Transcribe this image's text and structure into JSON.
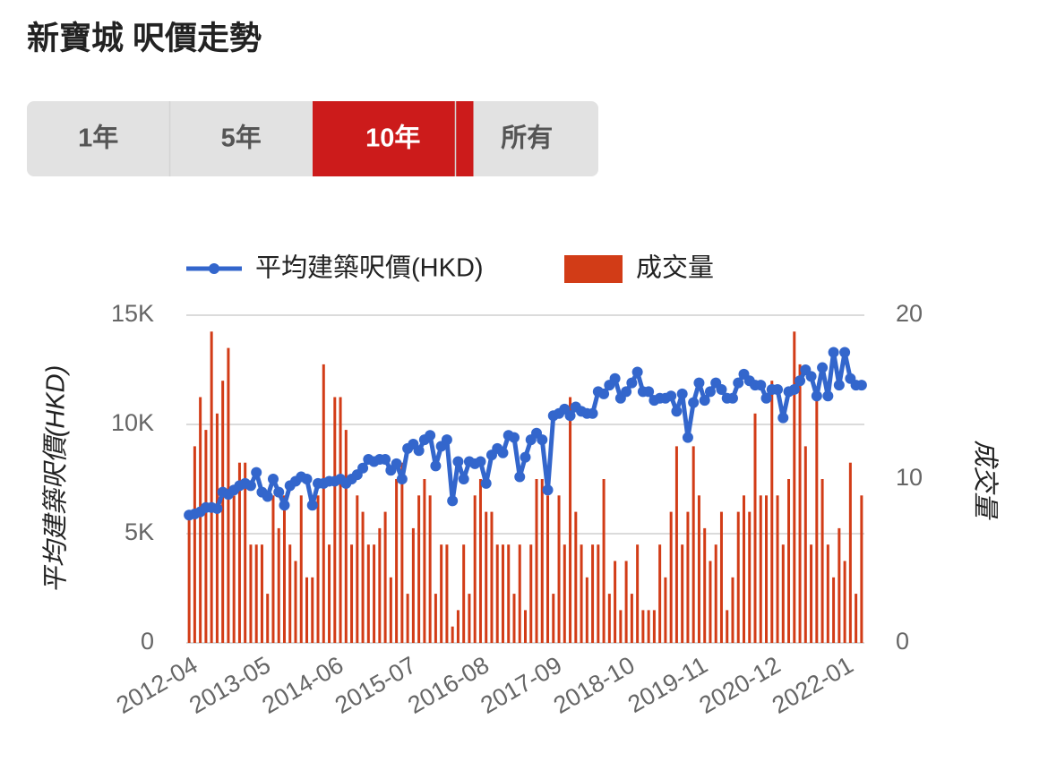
{
  "title": "新寶城 呎價走勢",
  "tabs": [
    {
      "label": "1年",
      "selected": false
    },
    {
      "label": "5年",
      "selected": false
    },
    {
      "label": "10年",
      "selected": true
    },
    {
      "label": "所有",
      "selected": false
    }
  ],
  "chart_data": {
    "type": "combo",
    "y_label": "平均建築呎價(HKD)",
    "y2_label": "成交量",
    "categories": [
      "2012-04",
      null,
      null,
      null,
      null,
      null,
      null,
      null,
      null,
      null,
      null,
      null,
      null,
      "2013-05",
      null,
      null,
      null,
      null,
      null,
      null,
      null,
      null,
      null,
      null,
      null,
      null,
      "2014-06",
      null,
      null,
      null,
      null,
      null,
      null,
      null,
      null,
      null,
      null,
      null,
      null,
      "2015-07",
      null,
      null,
      null,
      null,
      null,
      null,
      null,
      null,
      null,
      null,
      null,
      null,
      "2016-08",
      null,
      null,
      null,
      null,
      null,
      null,
      null,
      null,
      null,
      null,
      null,
      null,
      "2017-09",
      null,
      null,
      null,
      null,
      null,
      null,
      null,
      null,
      null,
      null,
      null,
      null,
      "2018-10",
      null,
      null,
      null,
      null,
      null,
      null,
      null,
      null,
      null,
      null,
      null,
      null,
      "2019-11",
      null,
      null,
      null,
      null,
      null,
      null,
      null,
      null,
      null,
      null,
      null,
      null,
      "2020-12",
      null,
      null,
      null,
      null,
      null,
      null,
      null,
      null,
      null,
      null,
      null,
      null,
      "2022-01",
      null,
      null,
      null
    ],
    "series": [
      {
        "name": "成交量",
        "type": "bar",
        "axis": "y2",
        "color": "#d23c17",
        "values": [
          8,
          12,
          15,
          13,
          19,
          14,
          16,
          18,
          9,
          11,
          11,
          6,
          6,
          6,
          3,
          9,
          7,
          9,
          6,
          5,
          9,
          4,
          4,
          9,
          17,
          6,
          15,
          15,
          13,
          6,
          9,
          8,
          6,
          6,
          7,
          8,
          4,
          10,
          11,
          3,
          7,
          9,
          10,
          9,
          3,
          6,
          6,
          1,
          2,
          6,
          3,
          9,
          10,
          8,
          8,
          6,
          6,
          6,
          3,
          6,
          2,
          6,
          10,
          10,
          9,
          3,
          9,
          6,
          15,
          8,
          6,
          4,
          6,
          6,
          10,
          3,
          5,
          2,
          5,
          3,
          6,
          2,
          2,
          2,
          6,
          4,
          8,
          12,
          6,
          8,
          12,
          9,
          7,
          5,
          6,
          8,
          2,
          4,
          8,
          9,
          8,
          14,
          9,
          9,
          16,
          9,
          6,
          10,
          19,
          17,
          12,
          6,
          15,
          10,
          6,
          4,
          7,
          5,
          11,
          3,
          9
        ]
      },
      {
        "name": "平均建築呎價(HKD)",
        "type": "line",
        "color": "#3366cc",
        "values": [
          5850,
          5900,
          6000,
          6200,
          6200,
          6150,
          6900,
          6800,
          7000,
          7200,
          7300,
          7200,
          7800,
          6900,
          6700,
          7500,
          6900,
          6300,
          7200,
          7400,
          7600,
          7500,
          6300,
          7300,
          7300,
          7400,
          7400,
          7500,
          7300,
          7500,
          7700,
          8000,
          8400,
          8300,
          8400,
          8400,
          7900,
          8200,
          7500,
          8900,
          9100,
          8800,
          9300,
          9500,
          8100,
          9000,
          9300,
          6500,
          8300,
          7500,
          8300,
          8200,
          8300,
          7300,
          8600,
          8900,
          8700,
          9500,
          9400,
          7600,
          8500,
          9300,
          9600,
          9300,
          7000,
          10400,
          10500,
          10700,
          10400,
          10800,
          10600,
          10500,
          10500,
          11500,
          11400,
          11800,
          12100,
          11200,
          11500,
          11900,
          12400,
          11500,
          11500,
          11100,
          11200,
          11200,
          11300,
          10600,
          11400,
          9400,
          11000,
          11900,
          11100,
          11500,
          11900,
          11600,
          11200,
          11200,
          11900,
          12300,
          12000,
          11800,
          11800,
          11200,
          11600,
          11600,
          10300,
          11500,
          11600,
          12000,
          12500,
          12200,
          11300,
          12600,
          11300,
          13300,
          11800,
          13300,
          12100,
          11800,
          11800
        ]
      }
    ],
    "ylim": [
      0,
      15000
    ],
    "yticks": [
      0,
      {
        "value": 5000,
        "label": "5K"
      },
      {
        "value": 10000,
        "label": "10K"
      },
      {
        "value": 15000,
        "label": "15K"
      }
    ],
    "y2lim": [
      0,
      20
    ],
    "y2ticks": [
      0,
      10,
      20
    ],
    "grid": true
  }
}
